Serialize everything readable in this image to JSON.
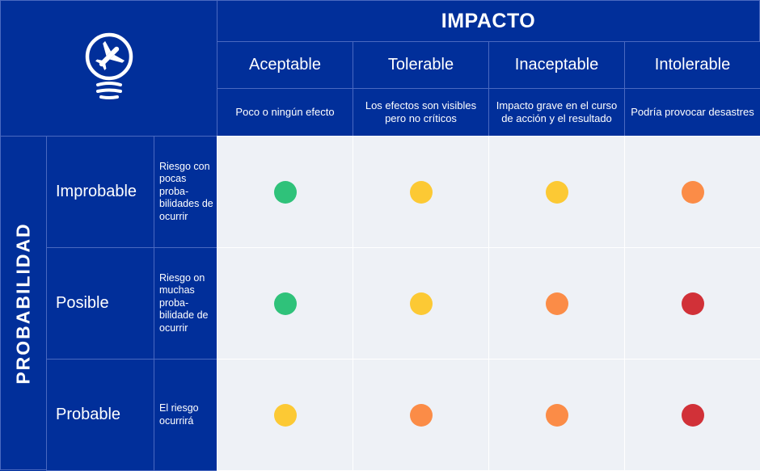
{
  "header": {
    "title": "IMPACTO",
    "axis_label": "PROBABILIDAD"
  },
  "impact_columns": [
    {
      "label": "Aceptable",
      "description": "Poco o ningún efecto"
    },
    {
      "label": "Tolerable",
      "description": "Los efectos son visibles pero no críticos"
    },
    {
      "label": "Inaceptable",
      "description": "Impacto grave en el curso de acción y el resultado"
    },
    {
      "label": "Intolerable",
      "description": "Podría provocar desastres"
    }
  ],
  "probability_rows": [
    {
      "label": "Improbable",
      "description": "Riesgo con pocas proba-bilidades de ocurrir",
      "levels": [
        "green",
        "yellow",
        "yellow",
        "orange"
      ]
    },
    {
      "label": "Posible",
      "description": "Riesgo on muchas proba-bilidade de ocurrir",
      "levels": [
        "green",
        "yellow",
        "orange",
        "red"
      ]
    },
    {
      "label": "Probable",
      "description": "El riesgo ocurrirá",
      "levels": [
        "yellow",
        "orange",
        "orange",
        "red"
      ]
    }
  ],
  "colors": {
    "green": "#2fc27a",
    "yellow": "#fcc934",
    "orange": "#fb8c47",
    "red": "#d13138",
    "brand": "#012f9a"
  },
  "icon": "lightbulb-airplane-icon"
}
